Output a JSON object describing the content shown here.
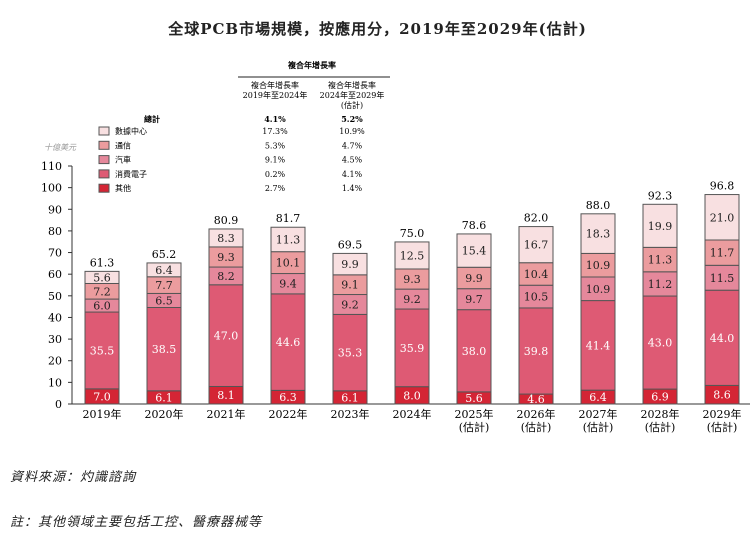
{
  "chart_data": {
    "type": "bar",
    "stacked": true,
    "title": "全球PCB市場規模，按應用分，2019年至2029年(估計)",
    "ylabel": "十億美元",
    "ylim": [
      0,
      110
    ],
    "yticks": [
      0,
      10,
      20,
      30,
      40,
      50,
      60,
      70,
      80,
      90,
      100,
      110
    ],
    "categories": [
      "2019年",
      "2020年",
      "2021年",
      "2022年",
      "2023年",
      "2024年",
      "2025年\n(估計)",
      "2026年\n(估計)",
      "2027年\n(估計)",
      "2028年\n(估計)",
      "2029年\n(估計)"
    ],
    "totals": [
      "61.3",
      "65.2",
      "80.9",
      "81.7",
      "69.5",
      "75.0",
      "78.6",
      "82.0",
      "88.0",
      "92.3",
      "96.8"
    ],
    "series": [
      {
        "name": "其他",
        "color": "#d42535",
        "values": [
          7.0,
          6.1,
          8.1,
          6.3,
          6.1,
          8.0,
          5.6,
          4.6,
          6.4,
          6.9,
          8.6
        ]
      },
      {
        "name": "消費電子",
        "color": "#de5a74",
        "values": [
          35.5,
          38.5,
          47.0,
          44.6,
          35.3,
          35.9,
          38.0,
          39.8,
          41.4,
          43.0,
          44.0
        ]
      },
      {
        "name": "汽車",
        "color": "#e5889b",
        "values": [
          6.0,
          6.5,
          8.2,
          9.4,
          9.2,
          9.2,
          9.7,
          10.5,
          10.9,
          11.2,
          11.5
        ]
      },
      {
        "name": "通信",
        "color": "#eb9c9e",
        "values": [
          7.2,
          7.7,
          9.3,
          10.1,
          9.1,
          9.3,
          9.9,
          10.4,
          10.9,
          11.3,
          11.7
        ]
      },
      {
        "name": "數據中心",
        "color": "#f8e0e1",
        "values": [
          5.6,
          6.4,
          8.3,
          11.3,
          9.9,
          12.5,
          15.4,
          16.7,
          18.3,
          19.9,
          21.0
        ]
      }
    ],
    "cagr_table": {
      "header": "複合年增長率",
      "col1": [
        "複合年增長率",
        "2019年至2024年"
      ],
      "col2": [
        "複合年增長率",
        "2024年至2029年",
        "(估計)"
      ],
      "total_label": "總計",
      "total": [
        "4.1%",
        "5.2%"
      ],
      "rows": [
        [
          "數據中心",
          "17.3%",
          "10.9%"
        ],
        [
          "通信",
          "5.3%",
          "4.7%"
        ],
        [
          "汽車",
          "9.1%",
          "4.5%"
        ],
        [
          "消費電子",
          "0.2%",
          "4.1%"
        ],
        [
          "其他",
          "2.7%",
          "1.4%"
        ]
      ]
    }
  },
  "source": "資料來源：灼識諮詢",
  "note": "註：其他領域主要包括工控、醫療器械等"
}
